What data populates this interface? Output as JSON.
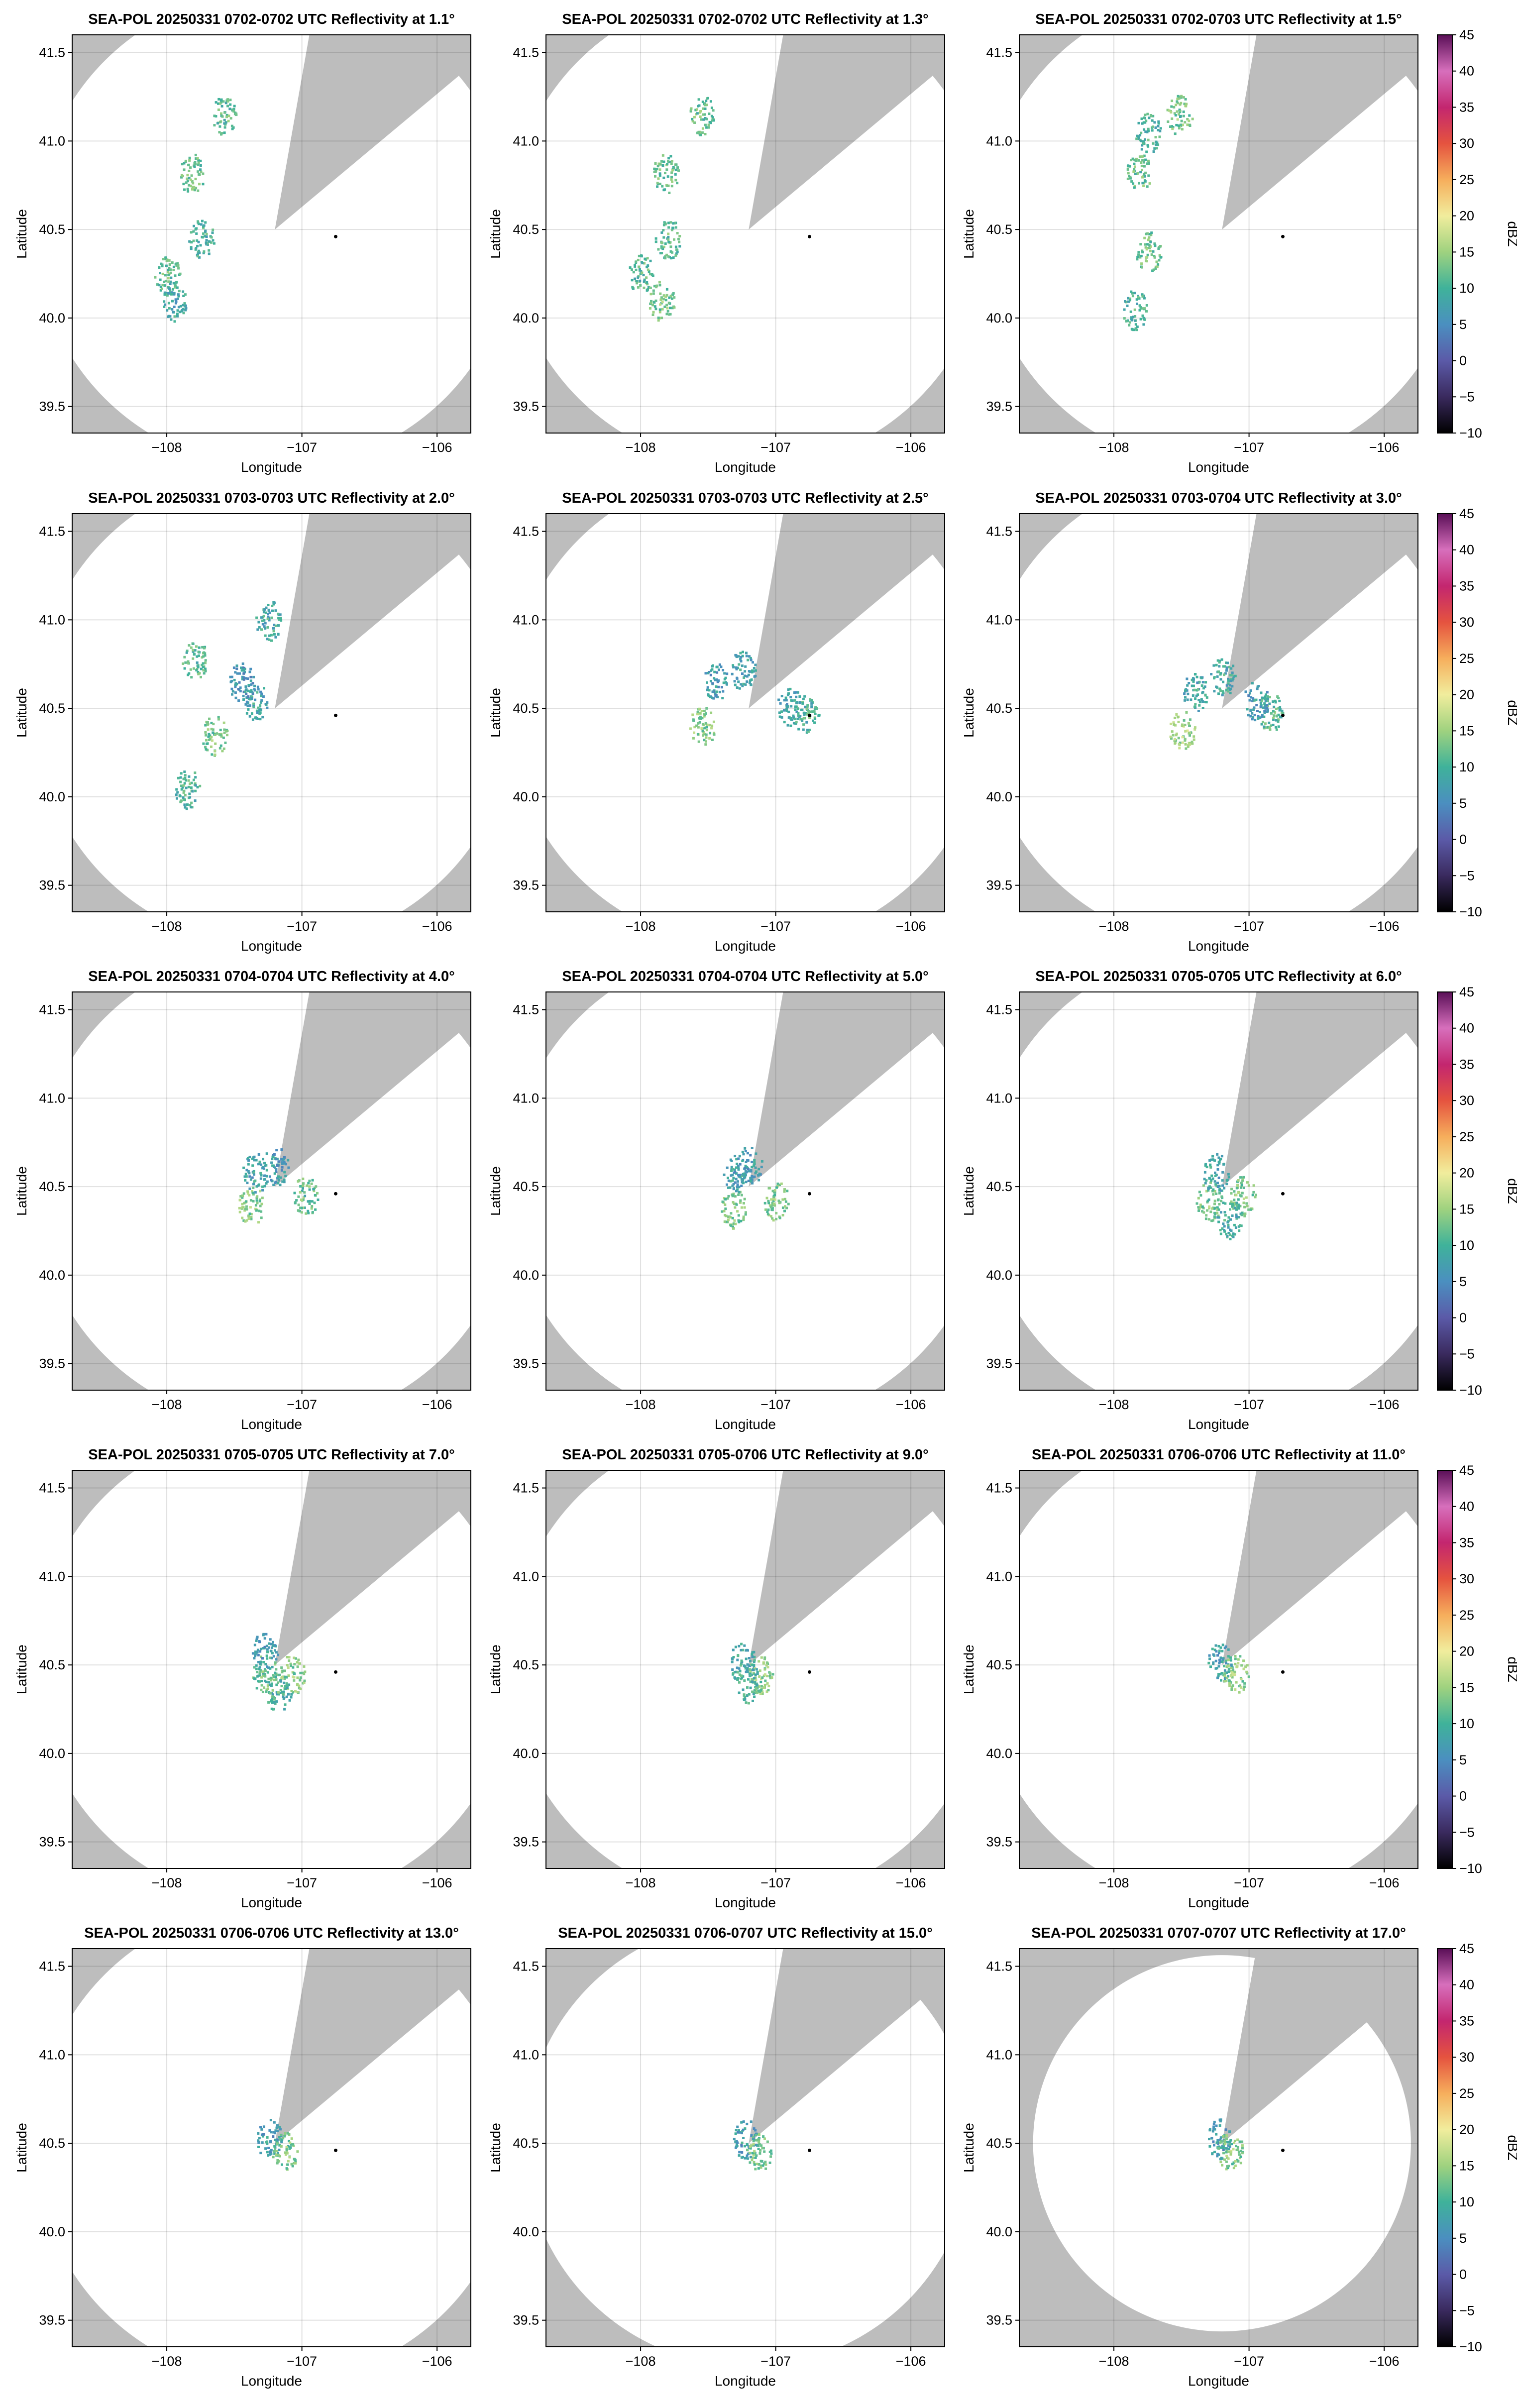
{
  "chart_data": {
    "type": "heatmap",
    "layout": "5x3 panel grid of radar PPI scans",
    "xlabel": "Longitude",
    "ylabel": "Latitude",
    "xlim": [
      -108.7,
      -105.75
    ],
    "ylim": [
      39.35,
      41.6
    ],
    "xticks": [
      -108,
      -107,
      -106
    ],
    "xtick_labels": [
      "−108",
      "−107",
      "−106"
    ],
    "yticks": [
      39.5,
      40.0,
      40.5,
      41.0,
      41.5
    ],
    "ytick_labels": [
      "39.5",
      "40.0",
      "40.5",
      "41.0",
      "41.5"
    ],
    "grid": true,
    "background_color": "#bdbdbd",
    "coverage_color": "#ffffff",
    "radar_center": {
      "lon": -107.2,
      "lat": 40.5
    },
    "blocked_sector_deg": [
      10,
      50
    ],
    "marker": {
      "lon": -106.75,
      "lat": 40.46,
      "color": "#000000"
    },
    "colorbar": {
      "label": "dBZ",
      "range": [
        -10,
        45
      ],
      "ticks": [
        -10,
        -5,
        0,
        5,
        10,
        15,
        20,
        25,
        30,
        35,
        40,
        45
      ],
      "tick_labels": [
        "−10",
        "−5",
        "0",
        "5",
        "10",
        "15",
        "20",
        "25",
        "30",
        "35",
        "40",
        "45"
      ],
      "stops": [
        "#000000",
        "#3a2a5e",
        "#5b5aa8",
        "#4b8fc0",
        "#3fb29a",
        "#9fd27f",
        "#f1ed9d",
        "#f6ae5c",
        "#e5533f",
        "#c3266f",
        "#d76fbc",
        "#5a0f57"
      ]
    },
    "panels": [
      {
        "title": "SEA-POL 20250331 0702-0702 UTC Reflectivity at 1.1°",
        "elevation_deg": 1.1,
        "range_km": 150,
        "echoes": [
          {
            "lon": -107.82,
            "lat": 40.82,
            "dbz": 12
          },
          {
            "lon": -107.58,
            "lat": 41.15,
            "dbz": 11
          },
          {
            "lon": -107.75,
            "lat": 40.45,
            "dbz": 10
          },
          {
            "lon": -108.0,
            "lat": 40.25,
            "dbz": 11
          },
          {
            "lon": -107.95,
            "lat": 40.1,
            "dbz": 9
          }
        ]
      },
      {
        "title": "SEA-POL 20250331 0702-0702 UTC Reflectivity at 1.3°",
        "elevation_deg": 1.3,
        "range_km": 150,
        "echoes": [
          {
            "lon": -107.82,
            "lat": 40.82,
            "dbz": 12
          },
          {
            "lon": -107.55,
            "lat": 41.15,
            "dbz": 12
          },
          {
            "lon": -107.8,
            "lat": 40.45,
            "dbz": 11
          },
          {
            "lon": -108.0,
            "lat": 40.25,
            "dbz": 11
          },
          {
            "lon": -107.85,
            "lat": 40.1,
            "dbz": 13
          }
        ]
      },
      {
        "title": "SEA-POL 20250331 0702-0703 UTC Reflectivity at 1.5°",
        "elevation_deg": 1.5,
        "range_km": 150,
        "echoes": [
          {
            "lon": -107.82,
            "lat": 40.82,
            "dbz": 12
          },
          {
            "lon": -107.52,
            "lat": 41.15,
            "dbz": 13
          },
          {
            "lon": -107.75,
            "lat": 40.38,
            "dbz": 12
          },
          {
            "lon": -107.85,
            "lat": 40.05,
            "dbz": 10
          },
          {
            "lon": -107.75,
            "lat": 41.05,
            "dbz": 10
          }
        ]
      },
      {
        "title": "SEA-POL 20250331 0703-0703 UTC Reflectivity at 2.0°",
        "elevation_deg": 2.0,
        "range_km": 150,
        "echoes": [
          {
            "lon": -107.65,
            "lat": 40.35,
            "dbz": 13
          },
          {
            "lon": -107.45,
            "lat": 40.65,
            "dbz": 6
          },
          {
            "lon": -107.35,
            "lat": 40.55,
            "dbz": 8
          },
          {
            "lon": -107.8,
            "lat": 40.78,
            "dbz": 11
          },
          {
            "lon": -107.25,
            "lat": 41.0,
            "dbz": 9
          },
          {
            "lon": -107.85,
            "lat": 40.05,
            "dbz": 10
          }
        ]
      },
      {
        "title": "SEA-POL 20250331 0703-0703 UTC Reflectivity at 2.5°",
        "elevation_deg": 2.5,
        "range_km": 150,
        "echoes": [
          {
            "lon": -107.55,
            "lat": 40.4,
            "dbz": 14
          },
          {
            "lon": -107.45,
            "lat": 40.65,
            "dbz": 7
          },
          {
            "lon": -107.25,
            "lat": 40.72,
            "dbz": 8
          },
          {
            "lon": -106.9,
            "lat": 40.52,
            "dbz": 8
          },
          {
            "lon": -106.78,
            "lat": 40.47,
            "dbz": 10
          }
        ]
      },
      {
        "title": "SEA-POL 20250331 0703-0704 UTC Reflectivity at 3.0°",
        "elevation_deg": 3.0,
        "range_km": 150,
        "echoes": [
          {
            "lon": -107.5,
            "lat": 40.38,
            "dbz": 15
          },
          {
            "lon": -107.4,
            "lat": 40.6,
            "dbz": 8
          },
          {
            "lon": -107.2,
            "lat": 40.68,
            "dbz": 9
          },
          {
            "lon": -106.85,
            "lat": 40.48,
            "dbz": 11
          },
          {
            "lon": -106.95,
            "lat": 40.55,
            "dbz": 7
          }
        ]
      },
      {
        "title": "SEA-POL 20250331 0704-0704 UTC Reflectivity at 4.0°",
        "elevation_deg": 4.0,
        "range_km": 150,
        "echoes": [
          {
            "lon": -107.38,
            "lat": 40.4,
            "dbz": 14
          },
          {
            "lon": -107.35,
            "lat": 40.58,
            "dbz": 8
          },
          {
            "lon": -107.2,
            "lat": 40.62,
            "dbz": 7
          },
          {
            "lon": -106.98,
            "lat": 40.45,
            "dbz": 12
          }
        ]
      },
      {
        "title": "SEA-POL 20250331 0704-0704 UTC Reflectivity at 5.0°",
        "elevation_deg": 5.0,
        "range_km": 150,
        "echoes": [
          {
            "lon": -107.32,
            "lat": 40.38,
            "dbz": 13
          },
          {
            "lon": -107.3,
            "lat": 40.58,
            "dbz": 8
          },
          {
            "lon": -107.2,
            "lat": 40.62,
            "dbz": 7
          },
          {
            "lon": -107.0,
            "lat": 40.42,
            "dbz": 13
          }
        ]
      },
      {
        "title": "SEA-POL 20250331 0705-0705 UTC Reflectivity at 6.0°",
        "elevation_deg": 6.0,
        "range_km": 150,
        "echoes": [
          {
            "lon": -107.3,
            "lat": 40.42,
            "dbz": 13
          },
          {
            "lon": -107.25,
            "lat": 40.58,
            "dbz": 8
          },
          {
            "lon": -107.05,
            "lat": 40.45,
            "dbz": 13
          },
          {
            "lon": -107.15,
            "lat": 40.32,
            "dbz": 9
          }
        ]
      },
      {
        "title": "SEA-POL 20250331 0705-0705 UTC Reflectivity at 7.0°",
        "elevation_deg": 7.0,
        "range_km": 150,
        "echoes": [
          {
            "lon": -107.28,
            "lat": 40.45,
            "dbz": 12
          },
          {
            "lon": -107.28,
            "lat": 40.58,
            "dbz": 7
          },
          {
            "lon": -107.08,
            "lat": 40.45,
            "dbz": 14
          },
          {
            "lon": -107.18,
            "lat": 40.35,
            "dbz": 10
          }
        ]
      },
      {
        "title": "SEA-POL 20250331 0705-0706 UTC Reflectivity at 9.0°",
        "elevation_deg": 9.0,
        "range_km": 150,
        "echoes": [
          {
            "lon": -107.25,
            "lat": 40.52,
            "dbz": 9
          },
          {
            "lon": -107.12,
            "lat": 40.45,
            "dbz": 14
          },
          {
            "lon": -107.2,
            "lat": 40.4,
            "dbz": 10
          }
        ]
      },
      {
        "title": "SEA-POL 20250331 0706-0706 UTC Reflectivity at 11.0°",
        "elevation_deg": 11.0,
        "range_km": 150,
        "echoes": [
          {
            "lon": -107.22,
            "lat": 40.52,
            "dbz": 8
          },
          {
            "lon": -107.1,
            "lat": 40.45,
            "dbz": 14
          }
        ]
      },
      {
        "title": "SEA-POL 20250331 0706-0706 UTC Reflectivity at 13.0°",
        "elevation_deg": 13.0,
        "range_km": 150,
        "echoes": [
          {
            "lon": -107.25,
            "lat": 40.53,
            "dbz": 7
          },
          {
            "lon": -107.13,
            "lat": 40.46,
            "dbz": 13
          }
        ]
      },
      {
        "title": "SEA-POL 20250331 0706-0707 UTC Reflectivity at 15.0°",
        "elevation_deg": 15.0,
        "range_km": 140,
        "echoes": [
          {
            "lon": -107.23,
            "lat": 40.53,
            "dbz": 7
          },
          {
            "lon": -107.13,
            "lat": 40.46,
            "dbz": 13
          }
        ]
      },
      {
        "title": "SEA-POL 20250331 0707-0707 UTC Reflectivity at 17.0°",
        "elevation_deg": 17.0,
        "range_km": 118,
        "echoes": [
          {
            "lon": -107.22,
            "lat": 40.53,
            "dbz": 7
          },
          {
            "lon": -107.14,
            "lat": 40.46,
            "dbz": 13
          }
        ]
      }
    ]
  }
}
